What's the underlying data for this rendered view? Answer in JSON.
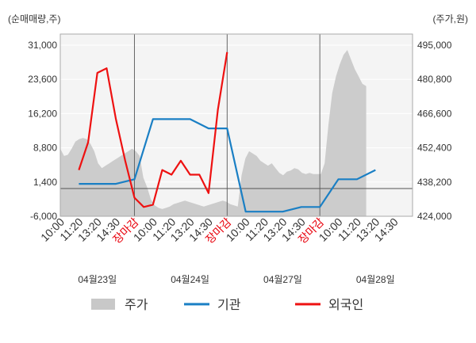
{
  "chart_data": {
    "type": "line",
    "left_unit_label": "(순매매량,주)",
    "right_unit_label": "(주가,원)",
    "left_ticks": [
      "31,000",
      "23,600",
      "16,200",
      "8,800",
      "1,400",
      "-6,000"
    ],
    "right_ticks": [
      "495,000",
      "480,800",
      "466,600",
      "452,400",
      "438,200",
      "424,000"
    ],
    "y_left_lim": [
      -6000,
      31000
    ],
    "y_right_lim": [
      424000,
      495000
    ],
    "baseline_left": 0,
    "x_tick_labels": [
      {
        "text": "10:00",
        "red": false
      },
      {
        "text": "11:20",
        "red": false
      },
      {
        "text": "13:20",
        "red": false
      },
      {
        "text": "14:30",
        "red": false
      },
      {
        "text": "장마감",
        "red": true
      },
      {
        "text": "10:00",
        "red": false
      },
      {
        "text": "11:20",
        "red": false
      },
      {
        "text": "13:20",
        "red": false
      },
      {
        "text": "14:30",
        "red": false
      },
      {
        "text": "장마감",
        "red": true
      },
      {
        "text": "10:00",
        "red": false
      },
      {
        "text": "11:20",
        "red": false
      },
      {
        "text": "13:20",
        "red": false
      },
      {
        "text": "14:30",
        "red": false
      },
      {
        "text": "장마감",
        "red": true
      },
      {
        "text": "10:00",
        "red": false
      },
      {
        "text": "11:20",
        "red": false
      },
      {
        "text": "13:20",
        "red": false
      },
      {
        "text": "14:30",
        "red": false
      }
    ],
    "dates": [
      "04월23일",
      "04월24일",
      "04월27일",
      "04월28일"
    ],
    "legend": [
      {
        "key": "price",
        "label": "주가",
        "color": "#c8c8c8"
      },
      {
        "key": "inst",
        "label": "기관",
        "color": "#1a7fc4"
      },
      {
        "key": "foreign",
        "label": "외국인",
        "color": "#ee1111"
      }
    ],
    "series": [
      {
        "key": "inst",
        "name": "기관",
        "color": "#1a7fc4",
        "axis": "left",
        "x": [
          1,
          2,
          3,
          4,
          5,
          6,
          7,
          8,
          9,
          10,
          11,
          12,
          13,
          14,
          15,
          16,
          17,
          18
        ],
        "values": [
          1000,
          1000,
          1000,
          2000,
          15000,
          15000,
          15000,
          13000,
          13000,
          -5000,
          -5000,
          -5000,
          -4000,
          -4000,
          2000,
          2000,
          4000,
          null
        ]
      },
      {
        "key": "foreign",
        "name": "외국인",
        "color": "#ee1111",
        "axis": "left",
        "x": [
          0.25,
          1,
          1.5,
          2,
          2.5,
          3,
          3.5,
          4,
          4.5,
          5,
          5.5,
          6,
          6.5,
          7,
          7.5,
          8,
          8.5,
          9,
          9.5,
          10,
          10.5,
          11,
          11.5,
          12,
          12.5,
          13,
          13.5,
          14,
          14.5,
          15,
          15.5,
          16,
          16.5,
          17,
          17.5,
          18
        ],
        "values": [
          null,
          4000,
          10000,
          25000,
          26000,
          15000,
          6000,
          -2000,
          -4000,
          -3500,
          4000,
          3000,
          6000,
          3000,
          3000,
          -1000,
          17000,
          29500,
          null,
          null,
          null,
          null,
          null,
          null,
          null,
          null,
          null,
          null,
          null,
          null,
          null,
          null,
          null,
          null,
          null,
          null
        ]
      }
    ],
    "price": {
      "axis": "right",
      "x_start": 0,
      "x_end": 16.5,
      "values": [
        452000,
        449000,
        449500,
        452000,
        455000,
        456000,
        456500,
        456000,
        454000,
        451000,
        446000,
        444000,
        445000,
        446000,
        447000,
        448000,
        449000,
        450000,
        451000,
        452000,
        451000,
        449000,
        440000,
        436000,
        431000,
        428500,
        427500,
        427000,
        427500,
        428000,
        429000,
        429500,
        430000,
        430500,
        430000,
        429500,
        429000,
        428500,
        428000,
        428500,
        429000,
        429500,
        430000,
        430500,
        430000,
        429000,
        428500,
        428000,
        441000,
        448000,
        451000,
        450000,
        449000,
        447000,
        446000,
        445000,
        446000,
        444000,
        442000,
        441000,
        442500,
        443000,
        444000,
        443500,
        442000,
        441500,
        442000,
        441500,
        441500,
        441500,
        446000,
        462000,
        475000,
        482000,
        487000,
        491000,
        493000,
        489000,
        485000,
        482000,
        479000,
        478000
      ]
    }
  }
}
